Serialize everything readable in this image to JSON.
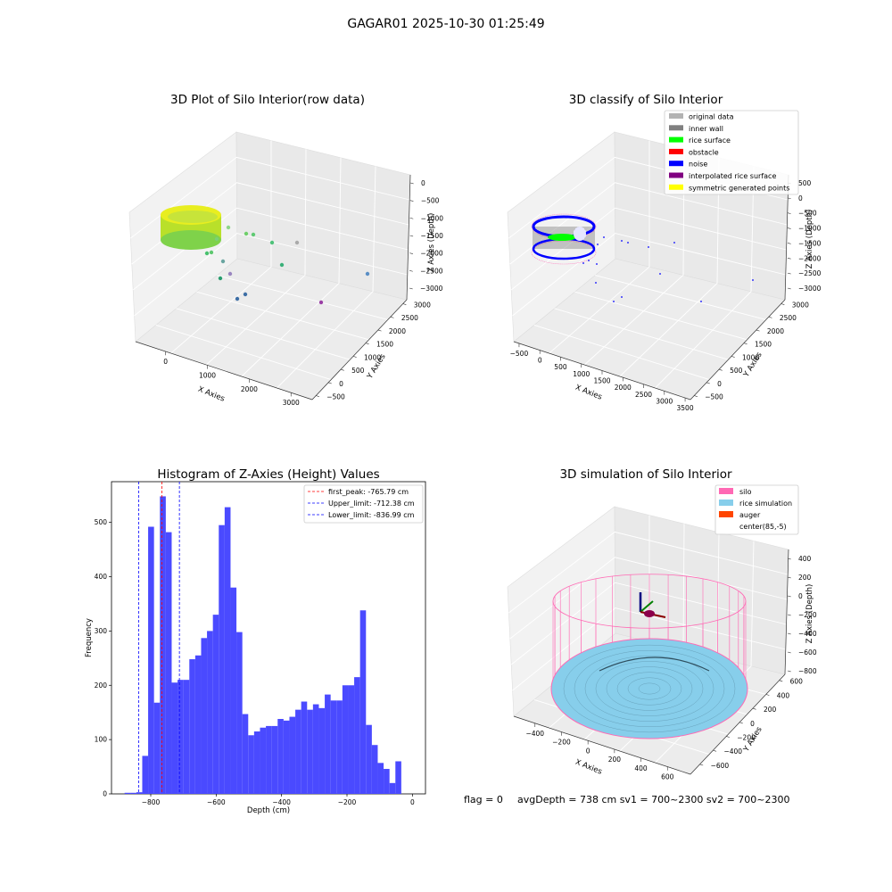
{
  "figure": {
    "suptitle": "GAGAR01 2025-10-30 01:25:49",
    "footer": {
      "flag": "flag = 0",
      "metrics": "avgDepth = 738 cm  sv1 = 700~2300  sv2 = 700~2300"
    }
  },
  "colors": {
    "original_data": "#b3b3b3",
    "inner_wall": "#808080",
    "rice_surface": "#00ff00",
    "obstacle": "#ff0000",
    "noise": "#0000ff",
    "interpolated_rice_surface": "#800080",
    "symmetric_generated_points": "#ffff00",
    "silo": "#ff69b4",
    "rice_simulation": "#87ceeb",
    "auger": "#ff4500",
    "hist_bar": "#4a4aff"
  },
  "panels": {
    "raw": {
      "title": "3D Plot of Silo Interior(row data)",
      "xlabel": "X Axies",
      "ylabel": "Y Axies",
      "zlabel": "Z Axies (Depth)",
      "xticks": [
        "0",
        "1000",
        "2000",
        "3000"
      ],
      "yticks": [
        "−500",
        "0",
        "500",
        "1000",
        "1500",
        "2000",
        "2500",
        "3000"
      ],
      "zticks": [
        "0",
        "−500",
        "−1000",
        "−1500",
        "−2000",
        "−2500",
        "−3000"
      ]
    },
    "classify": {
      "title": "3D classify of Silo Interior",
      "xlabel": "X Axies",
      "ylabel": "Y Axies",
      "zlabel": "Z Axies (Depth)",
      "xticks": [
        "−500",
        "0",
        "500",
        "1000",
        "1500",
        "2000",
        "2500",
        "3000",
        "3500"
      ],
      "yticks": [
        "−500",
        "0",
        "500",
        "1000",
        "1500",
        "2000",
        "2500",
        "3000"
      ],
      "zticks": [
        "500",
        "0",
        "−500",
        "−1000",
        "−1500",
        "−2000",
        "−2500",
        "−3000"
      ],
      "legend": [
        {
          "label": "original data",
          "color": "#b3b3b3"
        },
        {
          "label": "inner wall",
          "color": "#808080"
        },
        {
          "label": "rice surface",
          "color": "#00ff00"
        },
        {
          "label": "obstacle",
          "color": "#ff0000"
        },
        {
          "label": "noise",
          "color": "#0000ff"
        },
        {
          "label": "interpolated rice surface",
          "color": "#800080"
        },
        {
          "label": "symmetric generated points",
          "color": "#ffff00"
        }
      ]
    },
    "histogram": {
      "title": "Histogram of Z-Axies (Height) Values",
      "xlabel": "Depth (cm)",
      "ylabel": "Frequency",
      "legend": [
        {
          "label": "first_peak: -765.79 cm",
          "color": "#ff0000"
        },
        {
          "label": "Upper_limit: -712.38 cm",
          "color": "#0000ff"
        },
        {
          "label": "Lower_limit: -836.99 cm",
          "color": "#0000ff"
        }
      ]
    },
    "simulation": {
      "title": "3D simulation of Silo Interior",
      "xlabel": "X Axies",
      "ylabel": "Y Axies",
      "zlabel": "Z Axies (Depth)",
      "xticks": [
        "−400",
        "−200",
        "0",
        "200",
        "400",
        "600"
      ],
      "yticks": [
        "−600",
        "−400",
        "−200",
        "0",
        "200",
        "400",
        "600"
      ],
      "zticks": [
        "400",
        "200",
        "0",
        "−200",
        "−400",
        "−600",
        "−800"
      ],
      "legend": [
        {
          "label": "silo",
          "color": "#ff69b4"
        },
        {
          "label": "rice simulation",
          "color": "#87ceeb"
        },
        {
          "label": "auger",
          "color": "#ff4500"
        },
        {
          "label": "center(85,-5)",
          "color": ""
        }
      ]
    }
  },
  "chart_data": [
    {
      "type": "scatter",
      "title": "3D Plot of Silo Interior(row data)",
      "xlabel": "X Axies",
      "ylabel": "Y Axies",
      "zlabel": "Z Axies (Depth)",
      "xlim": [
        -500,
        3500
      ],
      "ylim": [
        -500,
        3000
      ],
      "zlim": [
        -3300,
        0
      ],
      "colormap": "viridis by depth",
      "series": [
        {
          "x": [
            0,
            1800,
            1000,
            2800,
            400,
            3000
          ],
          "y": [
            300,
            2400,
            500,
            2800,
            -300,
            1200
          ],
          "z": [
            -1300,
            -1800,
            -2200,
            -2800,
            -2500,
            -3100
          ]
        }
      ]
    },
    {
      "type": "scatter",
      "title": "3D classify of Silo Interior",
      "xlabel": "X Axies",
      "ylabel": "Y Axies",
      "zlabel": "Z Axies (Depth)",
      "xlim": [
        -500,
        3500
      ],
      "ylim": [
        -500,
        3000
      ],
      "zlim": [
        -3300,
        500
      ],
      "series": [
        {
          "name": "original data"
        },
        {
          "name": "inner wall"
        },
        {
          "name": "rice surface"
        },
        {
          "name": "obstacle"
        },
        {
          "name": "noise"
        },
        {
          "name": "interpolated rice surface"
        },
        {
          "name": "symmetric generated points"
        }
      ]
    },
    {
      "type": "bar",
      "title": "Histogram of Z-Axies (Height) Values",
      "xlabel": "Depth (cm)",
      "ylabel": "Frequency",
      "xlim": [
        -920,
        40
      ],
      "ylim": [
        0,
        575
      ],
      "xticks": [
        -800,
        -600,
        -400,
        -200,
        0
      ],
      "yticks": [
        0,
        100,
        200,
        300,
        400,
        500
      ],
      "bin_width": 18,
      "bin_starts": [
        -880,
        -862,
        -844,
        -826,
        -808,
        -790,
        -772,
        -754,
        -736,
        -718,
        -700,
        -682,
        -664,
        -646,
        -628,
        -610,
        -592,
        -574,
        -556,
        -538,
        -520,
        -502,
        -484,
        -466,
        -448,
        -430,
        -412,
        -394,
        -376,
        -358,
        -340,
        -322,
        -304,
        -286,
        -268,
        -250,
        -232,
        -214,
        -196,
        -178,
        -160,
        -142,
        -124,
        -106,
        -88,
        -70,
        -52,
        -34,
        -16
      ],
      "values": [
        2,
        2,
        3,
        70,
        492,
        168,
        548,
        482,
        205,
        210,
        210,
        248,
        255,
        287,
        300,
        330,
        495,
        528,
        380,
        298,
        147,
        108,
        115,
        122,
        125,
        125,
        138,
        135,
        142,
        155,
        170,
        155,
        165,
        158,
        183,
        172,
        172,
        200,
        200,
        215,
        338,
        127,
        90,
        57,
        46,
        20,
        60,
        0,
        0
      ],
      "vlines": [
        {
          "label": "first_peak: -765.79 cm",
          "x": -765.79,
          "color": "#ff0000"
        },
        {
          "label": "Upper_limit: -712.38 cm",
          "x": -712.38,
          "color": "#0000ff"
        },
        {
          "label": "Lower_limit: -836.99 cm",
          "x": -836.99,
          "color": "#0000ff"
        }
      ]
    },
    {
      "type": "surface",
      "title": "3D simulation of Silo Interior",
      "xlabel": "X Axies",
      "ylabel": "Y Axies",
      "zlabel": "Z Axies (Depth)",
      "xlim": [
        -500,
        700
      ],
      "ylim": [
        -650,
        650
      ],
      "zlim": [
        -900,
        450
      ],
      "series": [
        {
          "name": "silo"
        },
        {
          "name": "rice simulation"
        },
        {
          "name": "auger"
        },
        {
          "name": "center(85,-5)"
        }
      ]
    }
  ]
}
